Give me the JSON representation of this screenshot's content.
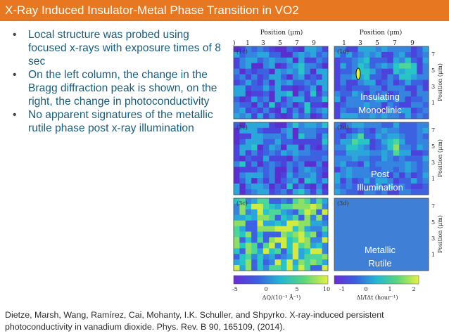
{
  "slide": {
    "title": "X-Ray Induced Insulator-Metal Phase Transition in VO2",
    "bullets": [
      "Local structure was probed using focused x-rays with exposure times of 8 sec",
      "On the left column, the change in the Bragg diffraction peak is shown, on the right, the change in photoconductivity",
      "No apparent signatures of the metallic rutile phase post x-ray illumination"
    ],
    "bullet_symbol": "•",
    "citation_line1": "Dietze, Marsh, Wang, Ramírez, Cai, Mohanty, I.K. Schuller, and Shpyrko. X-ray-induced persistent",
    "citation_line2": "photoconductivity in vanadium dioxide. Phys. Rev. B 90, 165109, (2014)."
  },
  "figure": {
    "top_axis_label": "Position (μm)",
    "right_axis_label": "Position (μm)",
    "top_ticks_left": [
      "1",
      "3",
      "5",
      "7",
      "9"
    ],
    "top_ticks_left_partial": ")",
    "top_ticks_right": [
      "1",
      "3",
      "5",
      "7",
      "9"
    ],
    "right_ticks": [
      "7",
      "5",
      "3",
      "1"
    ],
    "panels_left": [
      "(1c)",
      "(2c)",
      "(3c)"
    ],
    "panels_right": [
      "(1d)",
      "(2d)",
      "(3d)"
    ],
    "overlay_labels": [
      {
        "line1": "Insulating",
        "line2": "Monoclinic"
      },
      {
        "line1": "Post",
        "line2": "Illumination"
      },
      {
        "line1": "Metallic",
        "line2": "Rutile"
      }
    ],
    "colorbar_left": {
      "ticks": [
        "-5",
        "0",
        "5",
        "10"
      ],
      "label": "ΔQ/(10⁻³ Å⁻¹)"
    },
    "colorbar_right": {
      "ticks": [
        "-1",
        "0",
        "1",
        "2"
      ],
      "label": "ΔI/IΔt (hour⁻¹)"
    },
    "colors": {
      "title_bar": "#e87722",
      "bullet_text": "#1a5d7a",
      "overlay_text": "#ffffff",
      "uniform_panel": "#3f7fd6"
    }
  }
}
